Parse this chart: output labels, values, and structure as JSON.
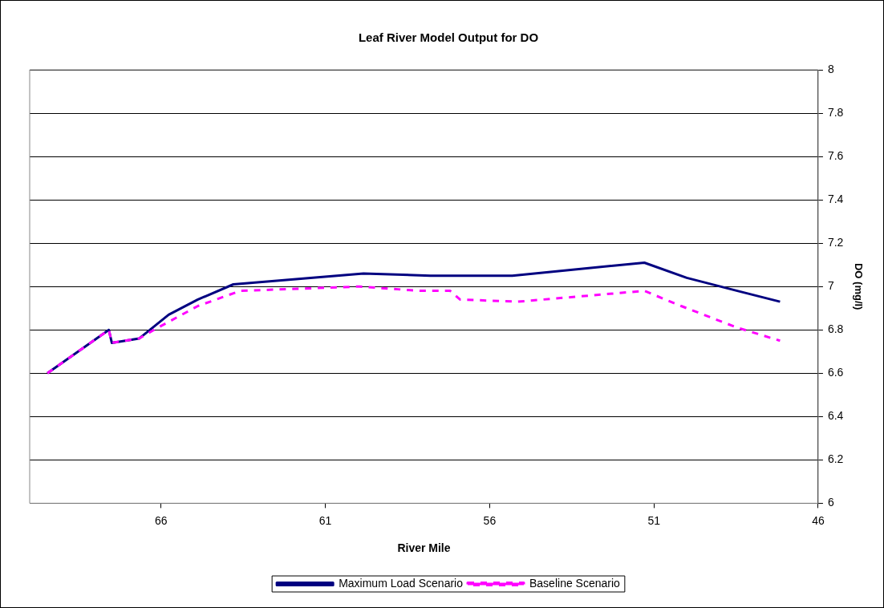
{
  "chart_data": {
    "type": "line",
    "title": "Leaf River Model Output for DO",
    "xlabel": "River Mile",
    "ylabel": "DO (mg/l)",
    "xlim": [
      70,
      46
    ],
    "xticks": [
      66,
      61,
      56,
      51,
      46
    ],
    "ylim": [
      6,
      8
    ],
    "yticks": [
      6,
      6.2,
      6.4,
      6.6,
      6.8,
      7,
      7.2,
      7.4,
      7.6,
      7.8,
      8
    ],
    "grid": "y",
    "legend": "bottom",
    "marker": "none",
    "series": [
      {
        "name": "Maximum Load Scenario",
        "color": "#000080",
        "line_style": "solid",
        "x": [
          69.46,
          67.59,
          67.5,
          66.67,
          65.77,
          64.88,
          63.8,
          59.84,
          57.8,
          56.93,
          55.31,
          51.29,
          50.0,
          48.46,
          47.16
        ],
        "values": [
          6.6,
          6.8,
          6.74,
          6.76,
          6.87,
          6.94,
          7.01,
          7.06,
          7.05,
          7.05,
          7.05,
          7.11,
          7.04,
          6.98,
          6.93
        ]
      },
      {
        "name": "Baseline Scenario",
        "color": "#ff00ff",
        "line_style": "dashed",
        "x": [
          69.46,
          67.59,
          67.5,
          66.67,
          66.1,
          64.88,
          63.59,
          59.96,
          58.13,
          57.2,
          56.9,
          55.14,
          51.29,
          50.17,
          48.46,
          47.16
        ],
        "values": [
          6.6,
          6.8,
          6.74,
          6.76,
          6.81,
          6.91,
          6.98,
          7.0,
          6.98,
          6.98,
          6.94,
          6.93,
          6.98,
          6.91,
          6.81,
          6.75
        ]
      }
    ]
  }
}
